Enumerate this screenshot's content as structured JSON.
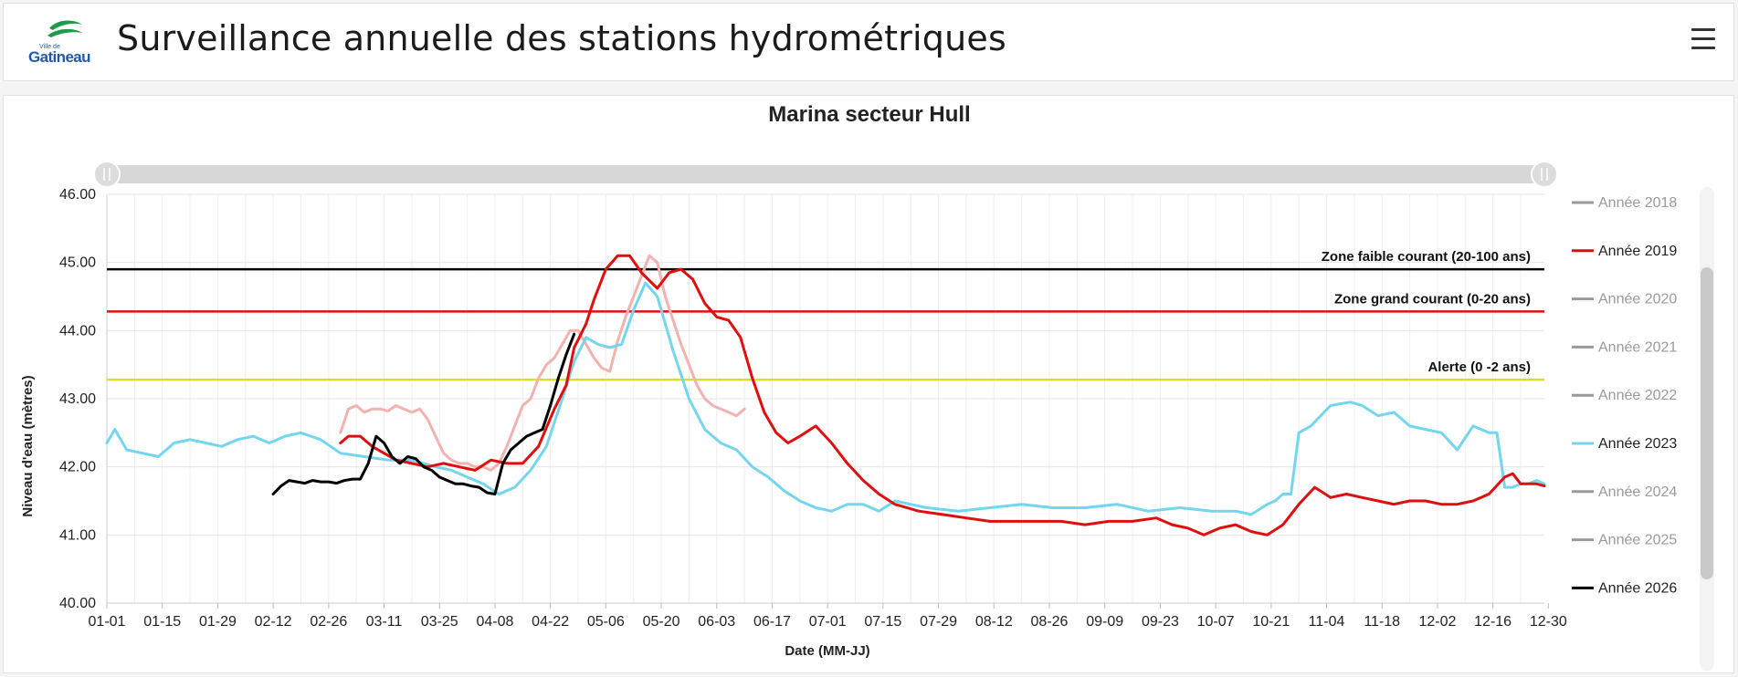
{
  "header": {
    "logo_small": "Ville de",
    "logo_text": "Gatineau",
    "title": "Surveillance annuelle des stations hydrométriques"
  },
  "colors": {
    "accent_green": "#1e9b4a",
    "logo_blue": "#1f5aa6"
  },
  "legend": {
    "items": [
      {
        "label": "Année 2018",
        "color": "#9a9a9a",
        "active": false
      },
      {
        "label": "Année 2019",
        "color": "#e00f0f",
        "active": true
      },
      {
        "label": "Année 2020",
        "color": "#9a9a9a",
        "active": false
      },
      {
        "label": "Année 2021",
        "color": "#9a9a9a",
        "active": false
      },
      {
        "label": "Année 2022",
        "color": "#9a9a9a",
        "active": false
      },
      {
        "label": "Année 2023",
        "color": "#74d6ee",
        "active": true
      },
      {
        "label": "Année 2024",
        "color": "#9a9a9a",
        "active": false
      },
      {
        "label": "Année 2025",
        "color": "#9a9a9a",
        "active": false
      },
      {
        "label": "Année 2026",
        "color": "#000000",
        "active": true
      }
    ]
  },
  "chart_data": {
    "type": "line",
    "title": "Marina secteur Hull",
    "xlabel": "Date (MM-JJ)",
    "ylabel": "Niveau d'eau (mètres)",
    "ylim": [
      40,
      46
    ],
    "yticks": [
      "46.00",
      "45.00",
      "44.00",
      "43.00",
      "42.00",
      "41.00",
      "40.00"
    ],
    "xlim_day": [
      1,
      364
    ],
    "xticks": [
      "01-01",
      "01-15",
      "01-29",
      "02-12",
      "02-26",
      "03-11",
      "03-25",
      "04-08",
      "04-22",
      "05-06",
      "05-20",
      "06-03",
      "06-17",
      "07-01",
      "07-15",
      "07-29",
      "08-12",
      "08-26",
      "09-09",
      "09-23",
      "10-07",
      "10-21",
      "11-04",
      "11-18",
      "12-02",
      "12-16",
      "12-30"
    ],
    "legend_position": "right",
    "grid": true,
    "thresholds": [
      {
        "label": "Zone faible courant (20-100 ans)",
        "value": 44.9,
        "color": "#000000"
      },
      {
        "label": "Zone grand courant (0-20 ans)",
        "value": 44.28,
        "color": "#e00f0f"
      },
      {
        "label": "Alerte (0 -2 ans)",
        "value": 43.28,
        "color": "#dede2a"
      }
    ],
    "series": [
      {
        "name": "Année 2023",
        "color": "#74d6ee",
        "x": [
          1,
          3,
          6,
          10,
          14,
          18,
          22,
          26,
          30,
          34,
          38,
          42,
          46,
          50,
          55,
          60,
          66,
          72,
          78,
          84,
          88,
          92,
          96,
          100,
          104,
          108,
          112,
          116,
          119,
          122,
          125,
          128,
          131,
          134,
          137,
          140,
          144,
          148,
          152,
          156,
          160,
          164,
          168,
          172,
          176,
          180,
          184,
          188,
          192,
          196,
          200,
          208,
          216,
          224,
          232,
          240,
          248,
          256,
          264,
          272,
          280,
          286,
          290,
          294,
          296,
          298,
          300,
          302,
          305,
          310,
          315,
          318,
          322,
          326,
          330,
          334,
          338,
          342,
          346,
          350,
          352,
          354,
          356,
          358,
          360,
          362,
          364
        ],
        "y": [
          42.35,
          42.55,
          42.25,
          42.2,
          42.15,
          42.35,
          42.4,
          42.35,
          42.3,
          42.4,
          42.45,
          42.35,
          42.45,
          42.5,
          42.4,
          42.2,
          42.15,
          42.1,
          42.1,
          42.0,
          41.95,
          41.85,
          41.75,
          41.6,
          41.7,
          41.95,
          42.3,
          43.0,
          43.55,
          43.9,
          43.8,
          43.75,
          43.8,
          44.3,
          44.7,
          44.5,
          43.7,
          43.0,
          42.55,
          42.35,
          42.25,
          42.0,
          41.85,
          41.65,
          41.5,
          41.4,
          41.35,
          41.45,
          41.45,
          41.35,
          41.5,
          41.4,
          41.35,
          41.4,
          41.45,
          41.4,
          41.4,
          41.45,
          41.35,
          41.4,
          41.35,
          41.35,
          41.3,
          41.45,
          41.5,
          41.6,
          41.6,
          42.5,
          42.6,
          42.9,
          42.95,
          42.9,
          42.75,
          42.8,
          42.6,
          42.55,
          42.5,
          42.25,
          42.6,
          42.5,
          42.5,
          41.7,
          41.7,
          41.75,
          41.75,
          41.8,
          41.75
        ]
      },
      {
        "name": "Année 2019",
        "color": "#e00f0f",
        "x": [
          60,
          62,
          65,
          68,
          71,
          74,
          78,
          82,
          86,
          90,
          94,
          98,
          102,
          106,
          110,
          114,
          117,
          119,
          122,
          124,
          127,
          130,
          133,
          136,
          140,
          143,
          146,
          149,
          152,
          155,
          158,
          161,
          164,
          167,
          170,
          173,
          176,
          180,
          184,
          188,
          192,
          196,
          200,
          206,
          212,
          218,
          224,
          230,
          236,
          242,
          248,
          254,
          260,
          266,
          270,
          274,
          278,
          282,
          286,
          290,
          294,
          298,
          300,
          302,
          306,
          310,
          314,
          318,
          322,
          326,
          330,
          334,
          338,
          342,
          346,
          350,
          354,
          356,
          358,
          360,
          362,
          364
        ],
        "y": [
          42.35,
          42.45,
          42.45,
          42.3,
          42.2,
          42.1,
          42.05,
          42.0,
          42.05,
          42.0,
          41.95,
          42.1,
          42.05,
          42.05,
          42.3,
          42.85,
          43.2,
          43.75,
          44.1,
          44.45,
          44.9,
          45.1,
          45.1,
          44.85,
          44.62,
          44.85,
          44.9,
          44.75,
          44.4,
          44.2,
          44.15,
          43.9,
          43.3,
          42.8,
          42.5,
          42.35,
          42.45,
          42.6,
          42.35,
          42.05,
          41.8,
          41.6,
          41.45,
          41.35,
          41.3,
          41.25,
          41.2,
          41.2,
          41.2,
          41.2,
          41.15,
          41.2,
          41.2,
          41.25,
          41.15,
          41.1,
          41.0,
          41.1,
          41.15,
          41.05,
          41.0,
          41.15,
          41.3,
          41.45,
          41.7,
          41.55,
          41.6,
          41.55,
          41.5,
          41.45,
          41.5,
          41.5,
          41.45,
          41.45,
          41.5,
          41.6,
          41.85,
          41.9,
          41.75,
          41.75,
          41.75,
          41.72
        ]
      },
      {
        "name": "Année 2026",
        "color": "#000000",
        "x": [
          43,
          45,
          47,
          49,
          51,
          53,
          55,
          57,
          59,
          61,
          63,
          65,
          67,
          69,
          71,
          73,
          75,
          77,
          79,
          81,
          83,
          85,
          87,
          89,
          91,
          93,
          95,
          97,
          99,
          101,
          103,
          105,
          107,
          109,
          111,
          113,
          115,
          117,
          119
        ],
        "y": [
          41.6,
          41.72,
          41.8,
          41.78,
          41.76,
          41.8,
          41.78,
          41.78,
          41.76,
          41.8,
          41.82,
          41.82,
          42.05,
          42.45,
          42.35,
          42.15,
          42.05,
          42.15,
          42.12,
          42.0,
          41.95,
          41.85,
          41.8,
          41.75,
          41.75,
          41.72,
          41.7,
          41.62,
          41.6,
          42.05,
          42.25,
          42.35,
          42.45,
          42.5,
          42.55,
          42.9,
          43.3,
          43.65,
          43.95
        ]
      },
      {
        "name": "",
        "color": "#f2b2b0",
        "x": [
          60,
          62,
          64,
          66,
          68,
          70,
          72,
          74,
          76,
          78,
          80,
          82,
          84,
          86,
          88,
          90,
          92,
          94,
          96,
          98,
          100,
          102,
          104,
          106,
          108,
          110,
          112,
          114,
          116,
          118,
          120,
          122,
          124,
          126,
          128,
          130,
          132,
          134,
          136,
          138,
          140,
          142,
          144,
          146,
          148,
          150,
          152,
          154,
          156,
          158,
          160,
          162
        ],
        "y": [
          42.5,
          42.85,
          42.9,
          42.8,
          42.85,
          42.85,
          42.82,
          42.9,
          42.85,
          42.8,
          42.85,
          42.7,
          42.45,
          42.2,
          42.1,
          42.05,
          42.05,
          42.0,
          42.0,
          41.95,
          42.05,
          42.3,
          42.6,
          42.9,
          43.0,
          43.3,
          43.5,
          43.6,
          43.8,
          44.0,
          44.0,
          43.8,
          43.6,
          43.45,
          43.4,
          43.85,
          44.2,
          44.5,
          44.8,
          45.1,
          45.0,
          44.5,
          44.15,
          43.8,
          43.5,
          43.2,
          43.0,
          42.9,
          42.85,
          42.8,
          42.75,
          42.85
        ]
      }
    ]
  }
}
